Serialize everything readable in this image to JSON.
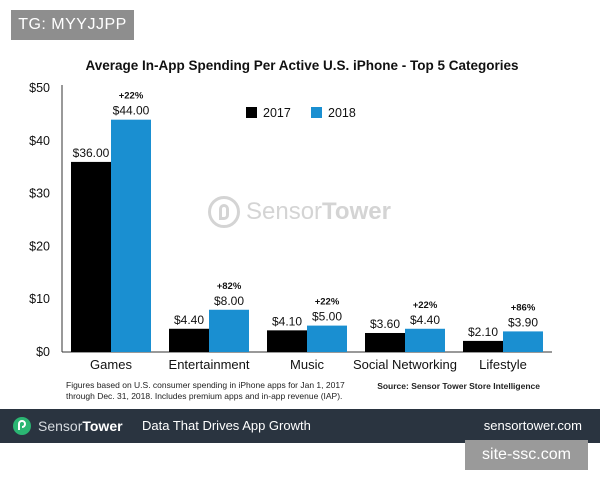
{
  "tag": "TG: MYYJJPP",
  "chart_data": {
    "type": "bar",
    "title": "Average In-App Spending Per Active U.S. iPhone - Top 5 Categories",
    "categories": [
      "Games",
      "Entertainment",
      "Music",
      "Social Networking",
      "Lifestyle"
    ],
    "series": [
      {
        "name": "2017",
        "color": "#000000",
        "values": [
          36.0,
          4.4,
          4.1,
          3.6,
          2.1
        ],
        "labels": [
          "$36.00",
          "$4.40",
          "$4.10",
          "$3.60",
          "$2.10"
        ]
      },
      {
        "name": "2018",
        "color": "#1a8fd1",
        "values": [
          44.0,
          8.0,
          5.0,
          4.4,
          3.9
        ],
        "labels": [
          "$44.00",
          "$8.00",
          "$5.00",
          "$4.40",
          "$3.90"
        ]
      }
    ],
    "growth_labels": [
      "+22%",
      "+82%",
      "+22%",
      "+22%",
      "+86%"
    ],
    "yticks": [
      0,
      10,
      20,
      30,
      40,
      50
    ],
    "ytick_labels": [
      "$0",
      "$10",
      "$20",
      "$30",
      "$40",
      "$50"
    ],
    "ylim": [
      0,
      50
    ],
    "grid": false,
    "legend_position": "top-center",
    "footnote_lines": [
      "Figures based on U.S. consumer spending in iPhone apps for Jan 1, 2017",
      "through Dec. 31, 2018. Includes premium apps and in-app revenue (IAP)."
    ],
    "source": "Source: Sensor Tower Store Intelligence"
  },
  "watermark": {
    "part1": "Sensor",
    "part2": "Tower"
  },
  "footer": {
    "brand_part1": "Sensor",
    "brand_part2": "Tower",
    "tagline": "Data That Drives App Growth",
    "url": "sensortower.com",
    "bg_color": "#2a3440"
  },
  "corner_watermark": "site-ssc.com"
}
